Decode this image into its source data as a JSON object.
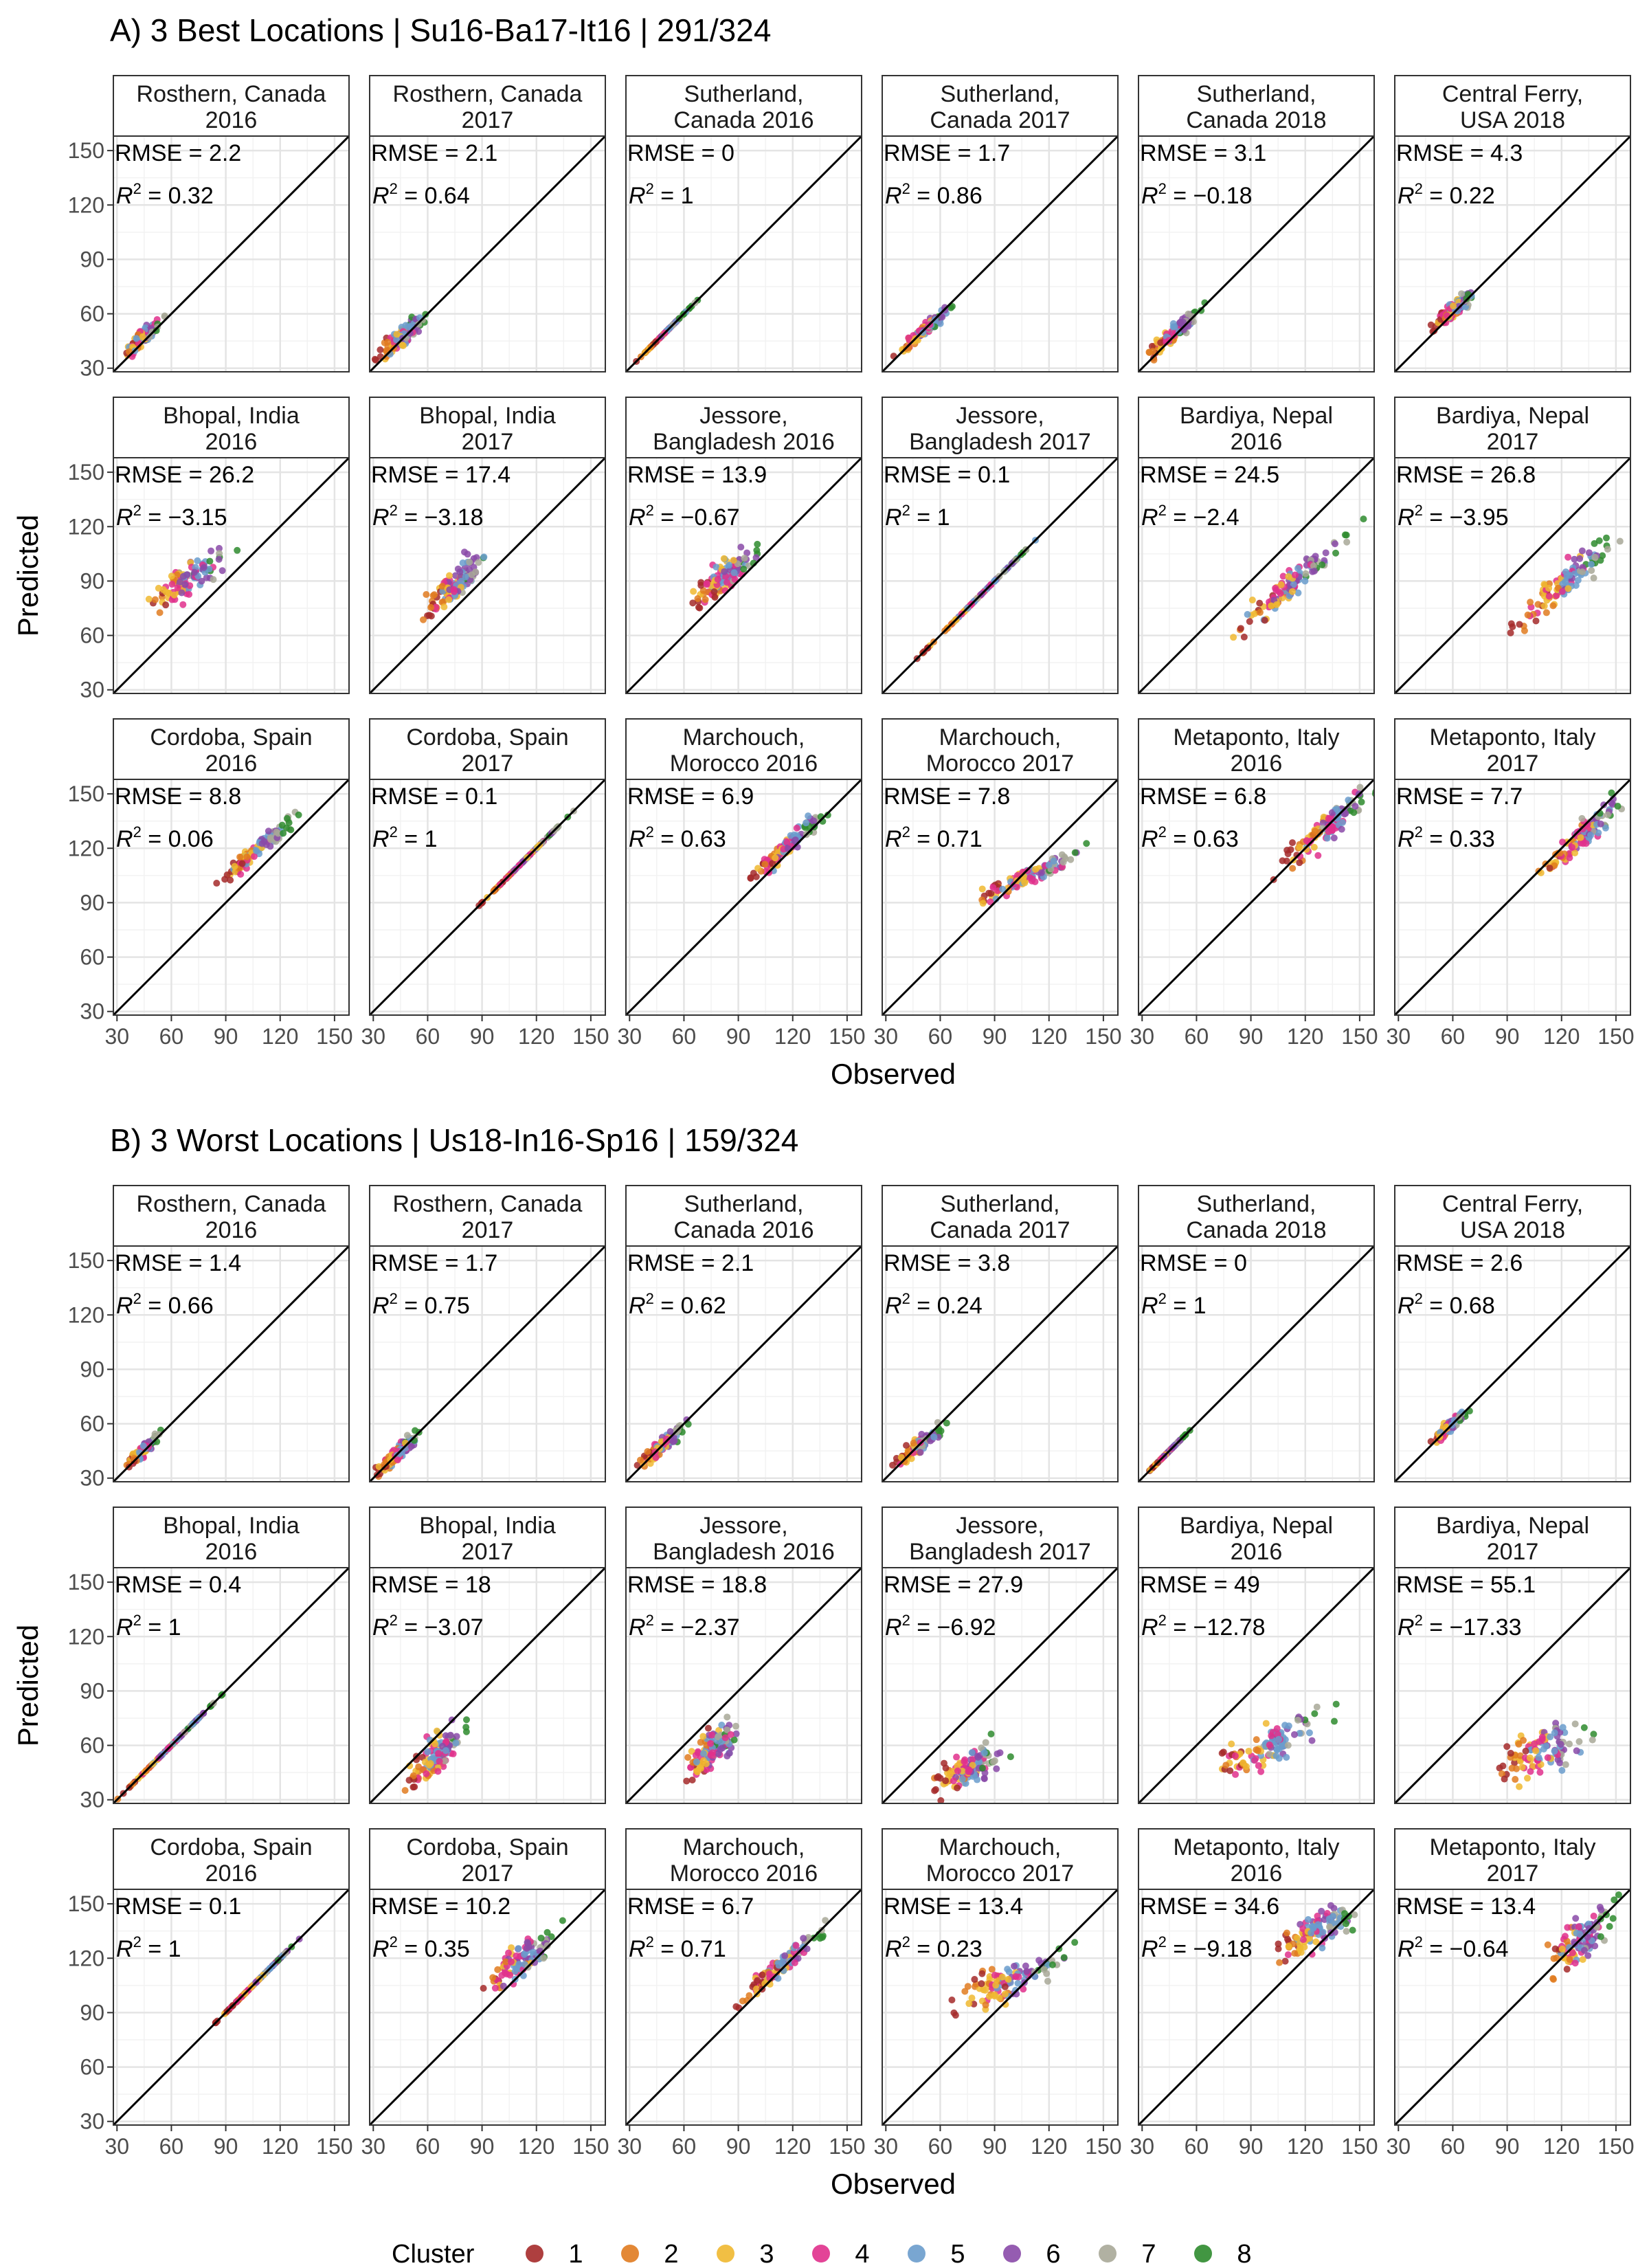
{
  "chart_data": {
    "type": "scatter",
    "xlabel": "Observed",
    "ylabel": "Predicted",
    "xlim": [
      28,
      158
    ],
    "ylim": [
      28,
      158
    ],
    "ticks": [
      30,
      60,
      90,
      120,
      150
    ],
    "reference_line": "y = x",
    "grid": true,
    "legend": {
      "title": "Cluster",
      "position": "bottom",
      "items": [
        {
          "label": "1",
          "color": "#a52a2a"
        },
        {
          "label": "2",
          "color": "#e07b20"
        },
        {
          "label": "3",
          "color": "#f0b830"
        },
        {
          "label": "4",
          "color": "#e0308c"
        },
        {
          "label": "5",
          "color": "#6a9ccc"
        },
        {
          "label": "6",
          "color": "#8a4aa8"
        },
        {
          "label": "7",
          "color": "#a8a898"
        },
        {
          "label": "8",
          "color": "#2e8b2e"
        }
      ]
    },
    "sections": [
      {
        "title": "A) 3 Best Locations | Su16-Ba17-It16 | 291/324",
        "panels": [
          {
            "label": [
              "Rosthern, Canada",
              "2016"
            ],
            "rmse": "2.2",
            "r2": "0.32",
            "pts": {
              "xc": 44,
              "xs": 5,
              "yc": 47,
              "ys": 4,
              "slope": 1.0
            }
          },
          {
            "label": [
              "Rosthern, Canada",
              "2017"
            ],
            "rmse": "2.1",
            "r2": "0.64",
            "pts": {
              "xc": 46,
              "xs": 6,
              "yc": 47,
              "ys": 5,
              "slope": 1.0
            }
          },
          {
            "label": [
              "Sutherland,",
              "Canada 2016"
            ],
            "rmse": "0",
            "r2": "1",
            "pts": {
              "xc": 50,
              "xs": 7,
              "yc": 50,
              "ys": 0,
              "slope": 1.0
            }
          },
          {
            "label": [
              "Sutherland,",
              "Canada 2017"
            ],
            "rmse": "1.7",
            "r2": "0.86",
            "pts": {
              "xc": 51,
              "xs": 7,
              "yc": 51,
              "ys": 3,
              "slope": 1.0
            }
          },
          {
            "label": [
              "Sutherland,",
              "Canada 2018"
            ],
            "rmse": "3.1",
            "r2": "−0.18",
            "pts": {
              "xc": 47,
              "xs": 6,
              "yc": 49,
              "ys": 4,
              "slope": 1.0
            }
          },
          {
            "label": [
              "Central Ferry,",
              "USA 2018"
            ],
            "rmse": "4.3",
            "r2": "0.22",
            "pts": {
              "xc": 60,
              "xs": 5,
              "yc": 62,
              "ys": 4,
              "slope": 0.9
            }
          },
          {
            "label": [
              "Bhopal, India",
              "2016"
            ],
            "rmse": "26.2",
            "r2": "−3.15",
            "pts": {
              "xc": 68,
              "xs": 10,
              "yc": 90,
              "ys": 8,
              "slope": 0.8
            }
          },
          {
            "label": [
              "Bhopal, India",
              "2017"
            ],
            "rmse": "17.4",
            "r2": "−3.18",
            "pts": {
              "xc": 75,
              "xs": 8,
              "yc": 88,
              "ys": 9,
              "slope": 1.0
            }
          },
          {
            "label": [
              "Jessore,",
              "Bangladesh 2016"
            ],
            "rmse": "13.9",
            "r2": "−0.67",
            "pts": {
              "xc": 82,
              "xs": 9,
              "yc": 92,
              "ys": 8,
              "slope": 0.9
            }
          },
          {
            "label": [
              "Jessore,",
              "Bangladesh 2017"
            ],
            "rmse": "0.1",
            "r2": "1",
            "pts": {
              "xc": 80,
              "xs": 14,
              "yc": 80,
              "ys": 0,
              "slope": 1.0
            }
          },
          {
            "label": [
              "Bardiya, Nepal",
              "2016"
            ],
            "rmse": "24.5",
            "r2": "−2.4",
            "pts": {
              "xc": 112,
              "xs": 14,
              "yc": 88,
              "ys": 7,
              "slope": 1.0
            }
          },
          {
            "label": [
              "Bardiya, Nepal",
              "2017"
            ],
            "rmse": "26.8",
            "r2": "−3.95",
            "pts": {
              "xc": 122,
              "xs": 13,
              "yc": 90,
              "ys": 8,
              "slope": 1.0
            }
          },
          {
            "label": [
              "Cordoba, Spain",
              "2016"
            ],
            "rmse": "8.8",
            "r2": "0.06",
            "pts": {
              "xc": 108,
              "xs": 9,
              "yc": 120,
              "ys": 5,
              "slope": 1.0
            }
          },
          {
            "label": [
              "Cordoba, Spain",
              "2017"
            ],
            "rmse": "0.1",
            "r2": "1",
            "pts": {
              "xc": 114,
              "xs": 11,
              "yc": 114,
              "ys": 0,
              "slope": 1.0
            }
          },
          {
            "label": [
              "Marchouch,",
              "Morocco 2016"
            ],
            "rmse": "6.9",
            "r2": "0.63",
            "pts": {
              "xc": 118,
              "xs": 9,
              "yc": 122,
              "ys": 5,
              "slope": 1.0
            }
          },
          {
            "label": [
              "Marchouch,",
              "Morocco 2017"
            ],
            "rmse": "7.8",
            "r2": "0.71",
            "pts": {
              "xc": 108,
              "xs": 14,
              "yc": 104,
              "ys": 4,
              "slope": 0.55
            }
          },
          {
            "label": [
              "Metaponto, Italy",
              "2016"
            ],
            "rmse": "6.8",
            "r2": "0.63",
            "pts": {
              "xc": 132,
              "xs": 11,
              "yc": 132,
              "ys": 8,
              "slope": 1.0
            }
          },
          {
            "label": [
              "Metaponto, Italy",
              "2017"
            ],
            "rmse": "7.7",
            "r2": "0.33",
            "pts": {
              "xc": 132,
              "xs": 10,
              "yc": 128,
              "ys": 8,
              "slope": 1.0
            }
          }
        ]
      },
      {
        "title": "B) 3 Worst Locations | Us18-In16-Sp16 | 159/324",
        "panels": [
          {
            "label": [
              "Rosthern, Canada",
              "2016"
            ],
            "rmse": "1.4",
            "r2": "0.66",
            "pts": {
              "xc": 44,
              "xs": 4,
              "yc": 45,
              "ys": 3,
              "slope": 1.0
            }
          },
          {
            "label": [
              "Rosthern, Canada",
              "2017"
            ],
            "rmse": "1.7",
            "r2": "0.75",
            "pts": {
              "xc": 44,
              "xs": 5,
              "yc": 44,
              "ys": 4,
              "slope": 1.0
            }
          },
          {
            "label": [
              "Sutherland,",
              "Canada 2016"
            ],
            "rmse": "2.1",
            "r2": "0.62",
            "pts": {
              "xc": 48,
              "xs": 6,
              "yc": 48,
              "ys": 4,
              "slope": 1.0
            }
          },
          {
            "label": [
              "Sutherland,",
              "Canada 2017"
            ],
            "rmse": "3.8",
            "r2": "0.24",
            "pts": {
              "xc": 49,
              "xs": 6,
              "yc": 49,
              "ys": 4,
              "slope": 0.9
            }
          },
          {
            "label": [
              "Sutherland,",
              "Canada 2018"
            ],
            "rmse": "0",
            "r2": "1",
            "pts": {
              "xc": 44,
              "xs": 5,
              "yc": 44,
              "ys": 0,
              "slope": 1.0
            }
          },
          {
            "label": [
              "Central Ferry,",
              "USA 2018"
            ],
            "rmse": "2.6",
            "r2": "0.68",
            "pts": {
              "xc": 58,
              "xs": 4,
              "yc": 58,
              "ys": 3,
              "slope": 1.0
            }
          },
          {
            "label": [
              "Bhopal, India",
              "2016"
            ],
            "rmse": "0.4",
            "r2": "1",
            "pts": {
              "xc": 60,
              "xs": 14,
              "yc": 60,
              "ys": 0,
              "slope": 1.0
            }
          },
          {
            "label": [
              "Bhopal, India",
              "2017"
            ],
            "rmse": "18",
            "r2": "−3.07",
            "pts": {
              "xc": 65,
              "xs": 8,
              "yc": 55,
              "ys": 10,
              "slope": 1.0
            }
          },
          {
            "label": [
              "Jessore,",
              "Bangladesh 2016"
            ],
            "rmse": "18.8",
            "r2": "−2.37",
            "pts": {
              "xc": 75,
              "xs": 7,
              "yc": 58,
              "ys": 10,
              "slope": 1.0
            }
          },
          {
            "label": [
              "Jessore,",
              "Bangladesh 2017"
            ],
            "rmse": "27.9",
            "r2": "−6.92",
            "pts": {
              "xc": 75,
              "xs": 8,
              "yc": 47,
              "ys": 8,
              "slope": 0.6
            }
          },
          {
            "label": [
              "Bardiya, Nepal",
              "2016"
            ],
            "rmse": "49",
            "r2": "−12.78",
            "pts": {
              "xc": 100,
              "xs": 14,
              "yc": 60,
              "ys": 10,
              "slope": 0.5
            }
          },
          {
            "label": [
              "Bardiya, Nepal",
              "2017"
            ],
            "rmse": "55.1",
            "r2": "−17.33",
            "pts": {
              "xc": 110,
              "xs": 12,
              "yc": 57,
              "ys": 10,
              "slope": 0.5
            }
          },
          {
            "label": [
              "Cordoba, Spain",
              "2016"
            ],
            "rmse": "0.1",
            "r2": "1",
            "pts": {
              "xc": 108,
              "xs": 10,
              "yc": 108,
              "ys": 0,
              "slope": 1.0
            }
          },
          {
            "label": [
              "Cordoba, Spain",
              "2017"
            ],
            "rmse": "10.2",
            "r2": "0.35",
            "pts": {
              "xc": 110,
              "xs": 9,
              "yc": 118,
              "ys": 8,
              "slope": 0.8
            }
          },
          {
            "label": [
              "Marchouch,",
              "Morocco 2016"
            ],
            "rmse": "6.7",
            "r2": "0.71",
            "pts": {
              "xc": 115,
              "xs": 10,
              "yc": 117,
              "ys": 5,
              "slope": 1.0
            }
          },
          {
            "label": [
              "Marchouch,",
              "Morocco 2017"
            ],
            "rmse": "13.4",
            "r2": "0.23",
            "pts": {
              "xc": 100,
              "xs": 14,
              "yc": 108,
              "ys": 8,
              "slope": 0.5
            }
          },
          {
            "label": [
              "Metaponto, Italy",
              "2016"
            ],
            "rmse": "34.6",
            "r2": "−9.18",
            "pts": {
              "xc": 125,
              "xs": 10,
              "yc": 135,
              "ys": 9,
              "slope": 0.6
            }
          },
          {
            "label": [
              "Metaponto, Italy",
              "2017"
            ],
            "rmse": "13.4",
            "r2": "−0.64",
            "pts": {
              "xc": 130,
              "xs": 8,
              "yc": 130,
              "ys": 10,
              "slope": 1.0
            }
          }
        ]
      }
    ]
  }
}
